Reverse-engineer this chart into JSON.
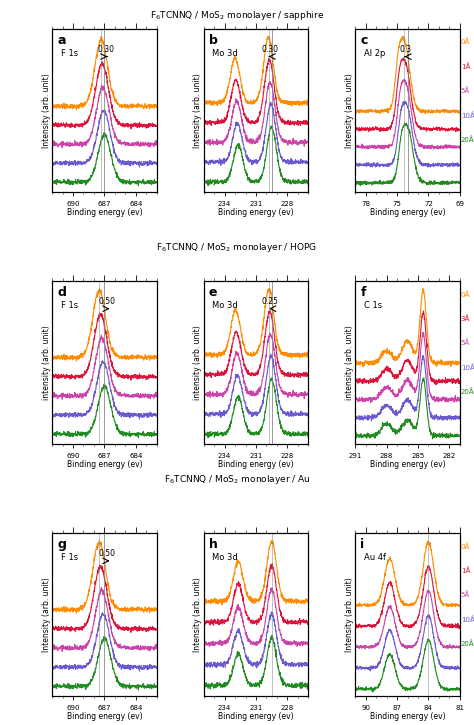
{
  "title_row1": "F$_6$TCNNQ / MoS$_2$ monolayer / sapphire",
  "title_row2": "F$_6$TCNNQ / MoS$_2$ monolayer / HOPG",
  "title_row3": "F$_6$TCNNQ / MoS$_2$ monolayer / Au",
  "colors": {
    "orange": "#FF8C00",
    "pink": "#FF69B4",
    "red": "#DC143C",
    "magenta": "#CC44AA",
    "purple": "#8B008B",
    "blue": "#4169E1",
    "teal": "#008080",
    "green": "#228B22",
    "violet": "#9400D3",
    "steelblue": "#4682B4"
  },
  "legend_labels_5": [
    "20Å",
    "10Å",
    "5Å",
    "1Å",
    "0Å"
  ],
  "legend_labels_hopg": [
    "20Å",
    "10Å",
    "5Å",
    "3Å",
    "0Å"
  ],
  "panels": [
    {
      "label": "a",
      "title": "F 1s",
      "xlabel": "Binding energy (ev)",
      "ylabel": "Intensity (arb. unit)",
      "xlim": [
        692,
        682
      ],
      "shift_text": "0.30",
      "arrow_dir": "left",
      "vline": 687.0
    },
    {
      "label": "b",
      "title": "Mo 3d",
      "xlabel": "Binding energy (ev)",
      "ylabel": "Intensity (arb. unit)",
      "xlim": [
        236,
        226
      ],
      "shift_text": "0.30",
      "arrow_dir": "right",
      "vline": 229.5
    },
    {
      "label": "c",
      "title": "Al 2p",
      "xlabel": "Binding energy (ev)",
      "ylabel": "Intensity (arb. unit)",
      "xlim": [
        79,
        69
      ],
      "shift_text": "0.3",
      "arrow_dir": "right",
      "vline": 74.0
    },
    {
      "label": "d",
      "title": "F 1s",
      "xlabel": "Binding energy (ev)",
      "ylabel": "intensity (arb. unit)",
      "xlim": [
        692,
        682
      ],
      "shift_text": "0.50",
      "arrow_dir": "left",
      "vline": 687.0
    },
    {
      "label": "e",
      "title": "Mo 3d",
      "xlabel": "Binding energy (ev)",
      "ylabel": "intensity (arb. unit)",
      "xlim": [
        236,
        226
      ],
      "shift_text": "0.25",
      "arrow_dir": "right",
      "vline": 229.5
    },
    {
      "label": "f",
      "title": "C 1s",
      "xlabel": "Binding energy (ev)",
      "ylabel": "intensity (arb. unit)",
      "xlim": [
        291,
        281
      ],
      "shift_text": null,
      "arrow_dir": null,
      "vline": null
    },
    {
      "label": "g",
      "title": "F 1s",
      "xlabel": "Binding energy (ev)",
      "ylabel": "Intensity (arb. unit)",
      "xlim": [
        692,
        682
      ],
      "shift_text": "0.50",
      "arrow_dir": "left",
      "vline": 687.0
    },
    {
      "label": "h",
      "title": "Mo 3d",
      "xlabel": "Binding energy (ev)",
      "ylabel": "Intensity (arb. unit)",
      "xlim": [
        236,
        226
      ],
      "shift_text": null,
      "arrow_dir": null,
      "vline": null
    },
    {
      "label": "i",
      "title": "Au 4f",
      "xlabel": "Binding energy (ev)",
      "ylabel": "Intensity (arb. unit)",
      "xlim": [
        91,
        81
      ],
      "shift_text": null,
      "arrow_dir": null,
      "vline": null
    }
  ]
}
